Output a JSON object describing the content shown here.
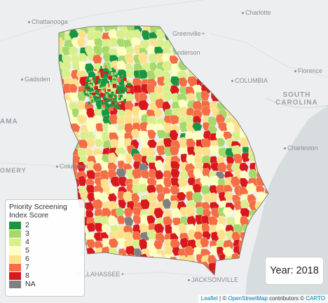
{
  "cities": [
    {
      "id": "chattanooga",
      "label": "Chattanooga"
    },
    {
      "id": "charlotte",
      "label": "Charlotte"
    },
    {
      "id": "greenville",
      "label": "Greenville"
    },
    {
      "id": "anderson",
      "label": "nderson"
    },
    {
      "id": "gadsden",
      "label": "Gadsden"
    },
    {
      "id": "columbia",
      "label": "COLUMBIA"
    },
    {
      "id": "florence",
      "label": "Florence"
    },
    {
      "id": "columbus",
      "label": "Columbus"
    },
    {
      "id": "charleston",
      "label": "Charleston"
    },
    {
      "id": "tallahassee",
      "label": "TALLAHASSEE"
    },
    {
      "id": "jacksonville",
      "label": "JACKSONVILLE"
    },
    {
      "id": "ama",
      "label": "AMA"
    },
    {
      "id": "omery",
      "label": "OMERY"
    }
  ],
  "states": [
    {
      "id": "south-carolina",
      "label": "SOUTH\nCAROLINA"
    }
  ],
  "legend": {
    "title_line1": "Priority Screening",
    "title_line2": "Index Score",
    "items": [
      {
        "label": "2",
        "color": "#1a9641"
      },
      {
        "label": "3",
        "color": "#a6d96a"
      },
      {
        "label": "4",
        "color": "#d9ef8b"
      },
      {
        "label": "5",
        "color": "#ffffbf"
      },
      {
        "label": "6",
        "color": "#fee08b"
      },
      {
        "label": "7",
        "color": "#f46d43"
      },
      {
        "label": "8",
        "color": "#d7191c"
      },
      {
        "label": "NA",
        "color": "#808080"
      }
    ]
  },
  "year_label": "Year: 2018",
  "attribution": {
    "leaflet": "Leaflet",
    "sep": " | © ",
    "osm": "OpenStreetMap",
    "contrib": " contributors © ",
    "carto": "CARTO"
  }
}
